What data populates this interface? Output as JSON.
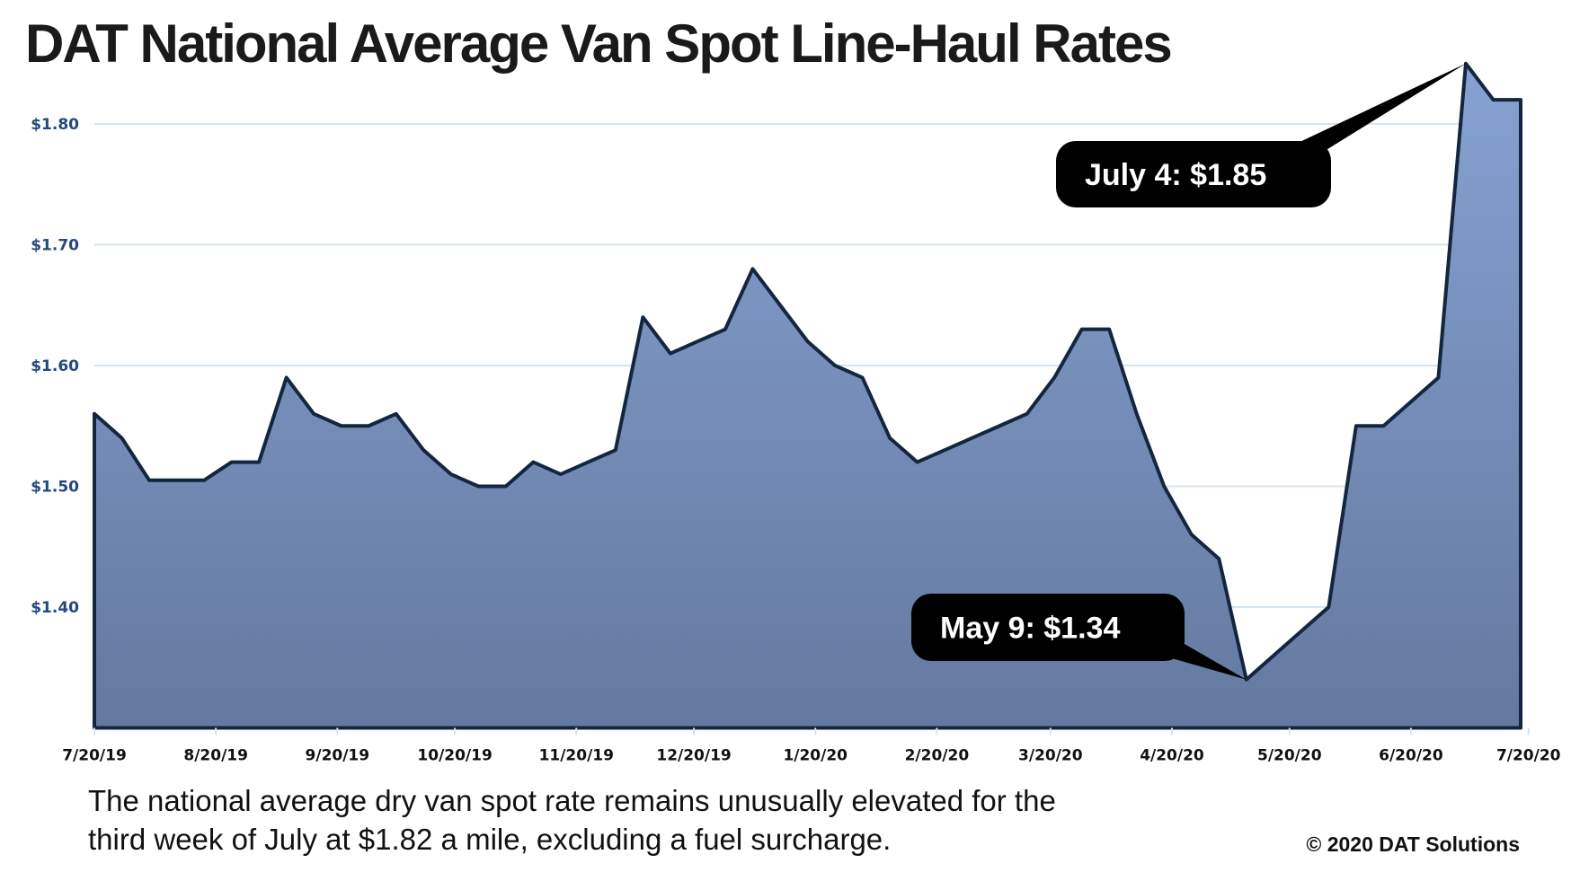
{
  "chart_data": {
    "type": "area",
    "title": "DAT National Average Van Spot Line-Haul Rates",
    "x_start": "2019-07-20",
    "x_interval": "weekly",
    "values": [
      1.56,
      1.54,
      1.505,
      1.505,
      1.505,
      1.52,
      1.52,
      1.59,
      1.56,
      1.55,
      1.55,
      1.56,
      1.53,
      1.51,
      1.5,
      1.5,
      1.52,
      1.51,
      1.52,
      1.53,
      1.64,
      1.61,
      1.62,
      1.63,
      1.68,
      1.65,
      1.62,
      1.6,
      1.59,
      1.54,
      1.52,
      1.53,
      1.54,
      1.55,
      1.56,
      1.59,
      1.63,
      1.63,
      1.56,
      1.5,
      1.46,
      1.44,
      1.34,
      1.36,
      1.38,
      1.4,
      1.55,
      1.55,
      1.57,
      1.59,
      1.85,
      1.82,
      1.82
    ],
    "ylim": [
      1.3,
      1.85
    ],
    "y_ticks": [
      1.4,
      1.5,
      1.6,
      1.7,
      1.8
    ],
    "y_tick_labels": [
      "$1.40",
      "$1.50",
      "$1.60",
      "$1.70",
      "$1.80"
    ],
    "x_ticks": [
      "2019-07-20",
      "2019-08-20",
      "2019-09-20",
      "2019-10-20",
      "2019-11-20",
      "2019-12-20",
      "2020-01-20",
      "2020-02-20",
      "2020-03-20",
      "2020-04-20",
      "2020-05-20",
      "2020-06-20",
      "2020-07-20"
    ],
    "x_tick_labels": [
      "7/20/19",
      "8/20/19",
      "9/20/19",
      "10/20/19",
      "11/20/19",
      "12/20/19",
      "1/20/20",
      "2/20/20",
      "3/20/20",
      "4/20/20",
      "5/20/20",
      "6/20/20",
      "7/20/20"
    ],
    "grid": "horizontal",
    "annotations": [
      {
        "text": "July 4: $1.85",
        "date": "2020-07-04",
        "value": 1.85
      },
      {
        "text": "May 9: $1.34",
        "date": "2020-05-09",
        "value": 1.34
      }
    ],
    "colors": {
      "fill_top": "#86a2d2",
      "fill_bottom": "#64799f",
      "line": "#13253f",
      "grid": "#d6e3f1",
      "y_label": "#23497e"
    }
  },
  "caption": {
    "line1": "The national average dry van spot rate remains unusually elevated for the",
    "line2": "third week of July at $1.82 a mile, excluding a fuel surcharge."
  },
  "copyright": "© 2020 DAT Solutions"
}
